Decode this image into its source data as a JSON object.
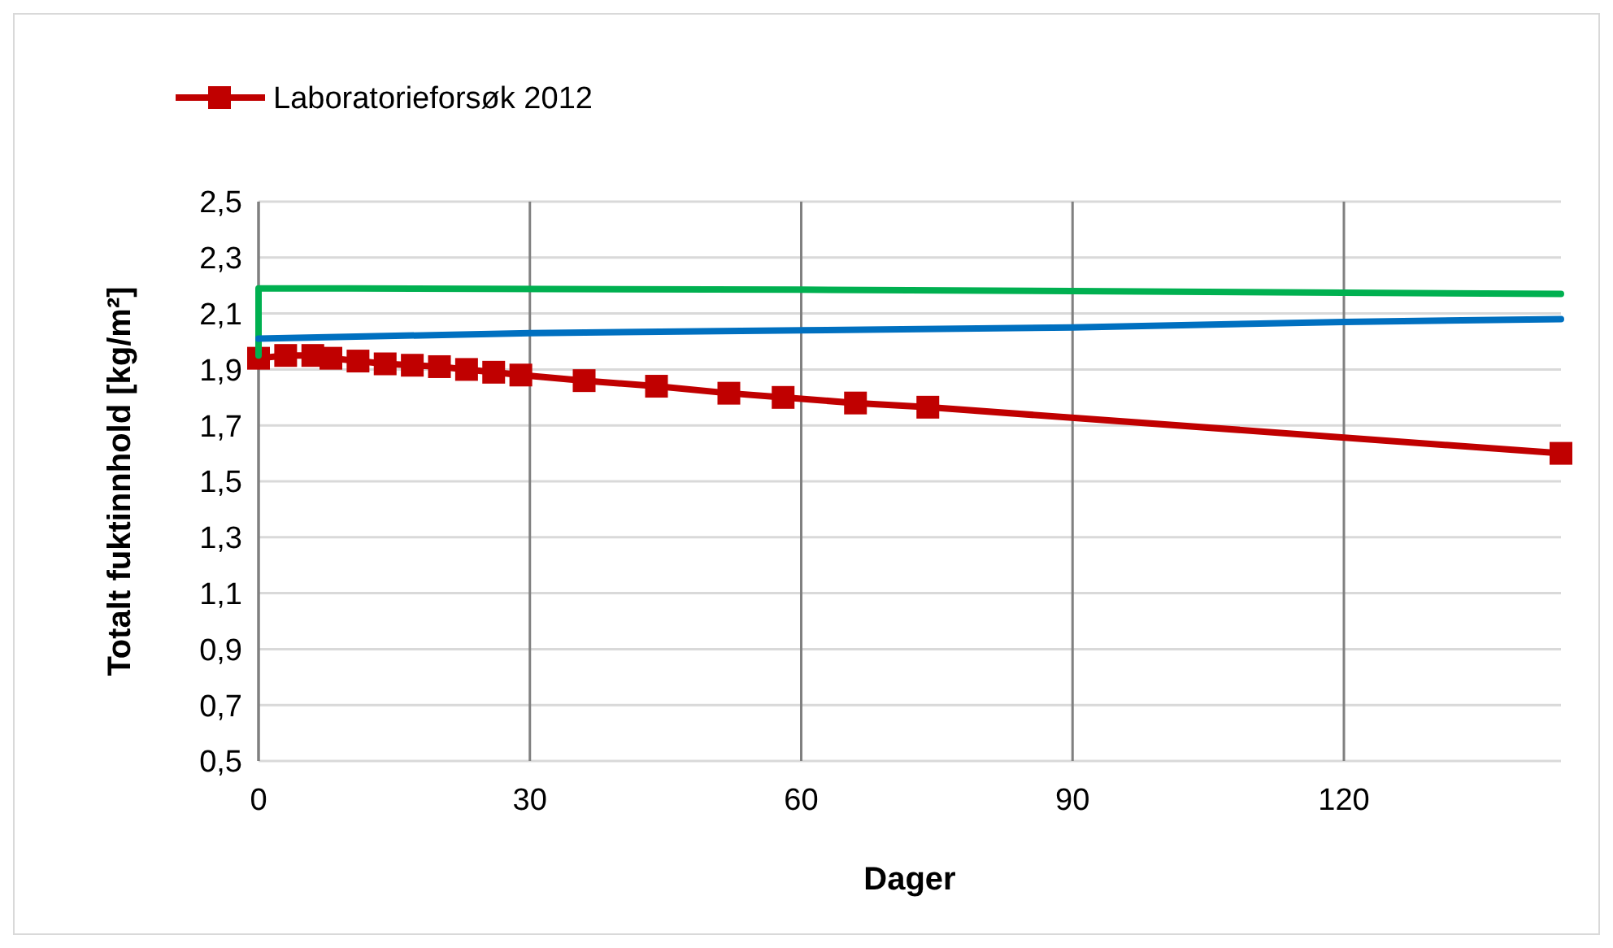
{
  "chart_data": {
    "type": "line",
    "xlabel": "Dager",
    "ylabel": "Totalt fuktinnhold [kg/m²]",
    "xlim": [
      0,
      144
    ],
    "xticks": [
      0,
      30,
      60,
      90,
      120
    ],
    "ylim": [
      0.5,
      2.5
    ],
    "yticks": [
      {
        "value": 0.5,
        "label": "0,5"
      },
      {
        "value": 0.7,
        "label": "0,7"
      },
      {
        "value": 0.9,
        "label": "0,9"
      },
      {
        "value": 1.1,
        "label": "1,1"
      },
      {
        "value": 1.3,
        "label": "1,3"
      },
      {
        "value": 1.5,
        "label": "1,5"
      },
      {
        "value": 1.7,
        "label": "1,7"
      },
      {
        "value": 1.9,
        "label": "1,9"
      },
      {
        "value": 2.1,
        "label": "2,1"
      },
      {
        "value": 2.3,
        "label": "2,3"
      },
      {
        "value": 2.5,
        "label": "2,5"
      }
    ],
    "grid": true,
    "legend": "top",
    "line_style": "solid",
    "series": [
      {
        "name": "Laboratorieforsøk 2012",
        "color": "#c00000",
        "marker": "square",
        "x": [
          0,
          3,
          6,
          8,
          11,
          14,
          17,
          20,
          23,
          26,
          29,
          36,
          44,
          52,
          58,
          66,
          74,
          144
        ],
        "values": [
          1.94,
          1.95,
          1.95,
          1.94,
          1.93,
          1.92,
          1.915,
          1.91,
          1.9,
          1.89,
          1.88,
          1.86,
          1.84,
          1.815,
          1.8,
          1.78,
          1.765,
          1.6
        ]
      },
      {
        "color": "#00b050",
        "marker": "none",
        "x": [
          0,
          0,
          10,
          60,
          90,
          144
        ],
        "values": [
          1.95,
          2.19,
          2.19,
          2.185,
          2.18,
          2.17
        ]
      },
      {
        "color": "#0070c0",
        "marker": "none",
        "x": [
          0,
          30,
          60,
          90,
          120,
          144
        ],
        "values": [
          2.01,
          2.03,
          2.04,
          2.05,
          2.07,
          2.08
        ]
      }
    ]
  }
}
